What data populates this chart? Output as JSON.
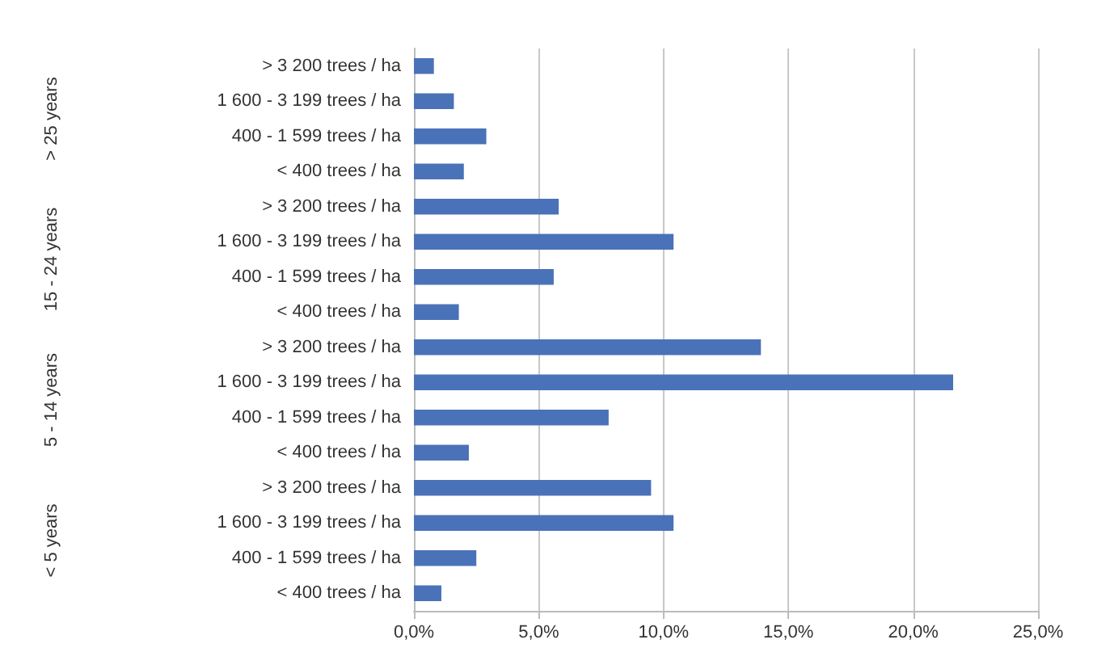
{
  "chart_data": {
    "type": "bar",
    "orientation": "horizontal",
    "categories": [
      "> 3 200 trees / ha",
      "1 600 - 3 199 trees / ha",
      "400 - 1 599 trees / ha",
      "< 400 trees / ha",
      "> 3 200 trees / ha",
      "1 600 - 3 199 trees / ha",
      "400 - 1 599 trees / ha",
      "< 400 trees / ha",
      "> 3 200 trees / ha",
      "1 600 - 3 199 trees / ha",
      "400 - 1 599 trees / ha",
      "< 400 trees / ha",
      "> 3 200 trees / ha",
      "1 600 - 3 199 trees / ha",
      "400 - 1 599 trees / ha",
      "< 400 trees / ha"
    ],
    "values": [
      0.8,
      1.6,
      2.9,
      2.0,
      5.8,
      10.4,
      5.6,
      1.8,
      13.9,
      21.6,
      7.8,
      2.2,
      9.5,
      10.4,
      2.5,
      1.1
    ],
    "color": "#4a72b8",
    "annotations": [
      "> 25 years",
      "15 - 24 years",
      "5 - 14 years",
      "< 5 years"
    ],
    "xlim": [
      0,
      25
    ],
    "xticks": [
      {
        "value": 0,
        "label": "0,0%"
      },
      {
        "value": 5,
        "label": "5,0%"
      },
      {
        "value": 10,
        "label": "10,0%"
      },
      {
        "value": 15,
        "label": "15,0%"
      },
      {
        "value": 20,
        "label": "20,0%"
      },
      {
        "value": 25,
        "label": "25,0%"
      }
    ],
    "grid": "x"
  }
}
